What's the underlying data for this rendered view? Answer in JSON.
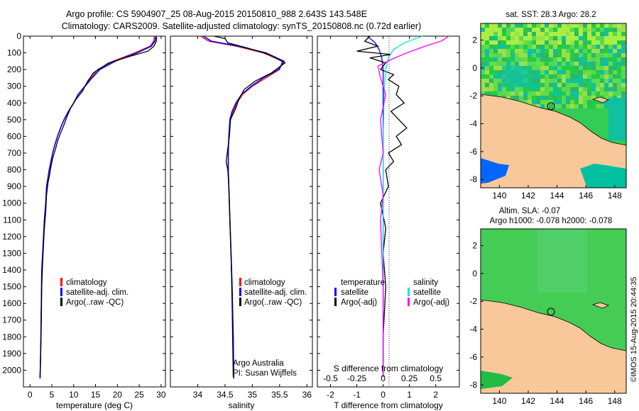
{
  "header": {
    "line1": "Argo profile: CS 5904907_25 08-Aug-2015 20150810_988 2.643S 143.548E",
    "line2": "Climatology: CARS2009. Satellite-adjusted climatology: synTS_20150808.nc (0.72d earlier)"
  },
  "credits": {
    "program": "Argo Australia",
    "pi": "PI: Susan Wijffels",
    "imos": "©IMOS 15-Aug-2015 20:44:35"
  },
  "colors": {
    "climatology": "#ff0000",
    "satellite": "#0000ff",
    "argo": "#000000",
    "sal_satellite": "#00e5e5",
    "sal_argo": "#ff00ff",
    "land": "#f8c89a",
    "ocean_dark": "#0066ff",
    "ocean_mid": "#00c0a0",
    "ocean_green": "#22cc44",
    "ocean_light": "#aaee44"
  },
  "chart_data": [
    {
      "type": "line",
      "xlabel": "temperature (deg C)",
      "ylim": [
        2100,
        0
      ],
      "xlim": [
        -1.5,
        31
      ],
      "xticks": [
        0,
        5,
        10,
        15,
        20,
        25,
        30
      ],
      "yticks": [
        0,
        100,
        200,
        300,
        400,
        500,
        600,
        700,
        800,
        900,
        1000,
        1100,
        1200,
        1300,
        1400,
        1500,
        1600,
        1700,
        1800,
        1900,
        2000
      ],
      "legend": [
        "climatology",
        "satellite-adj. clim.",
        "Argo(..raw -QC)"
      ],
      "series": [
        {
          "name": "climatology",
          "x": [
            28.5,
            28.3,
            27.5,
            24,
            19,
            15.5,
            14,
            12.5,
            11,
            10,
            8.8,
            7.8,
            7,
            6.3,
            5.7,
            5.2,
            4.8,
            4.4,
            4.1,
            3.8,
            3.6,
            3.3,
            3.1,
            2.9,
            2.7,
            2.6,
            2.5,
            2.4,
            2.3
          ],
          "y": [
            0,
            30,
            60,
            100,
            150,
            200,
            250,
            300,
            350,
            400,
            450,
            500,
            550,
            600,
            650,
            700,
            750,
            800,
            850,
            900,
            1000,
            1100,
            1200,
            1300,
            1400,
            1600,
            1800,
            1950,
            2050
          ]
        },
        {
          "name": "satellite-adj. clim.",
          "x": [
            28.8,
            28.6,
            27.8,
            24.5,
            19.5,
            16,
            14.2,
            12.6,
            11,
            10,
            8.8,
            7.8,
            7,
            6.3,
            5.7,
            5.2,
            4.8,
            4.4,
            4.1,
            3.8,
            3.6,
            3.3,
            3.1,
            2.9,
            2.7,
            2.6,
            2.5,
            2.4,
            2.3
          ],
          "y": [
            0,
            30,
            60,
            100,
            150,
            200,
            250,
            300,
            350,
            400,
            450,
            500,
            550,
            600,
            650,
            700,
            750,
            800,
            850,
            900,
            1000,
            1100,
            1200,
            1300,
            1400,
            1600,
            1800,
            1950,
            2050
          ]
        },
        {
          "name": "Argo(..raw -QC)",
          "x": [
            29,
            28.9,
            28.4,
            27,
            23,
            18,
            14.5,
            13.2,
            12,
            10.5,
            9.3,
            8.5,
            7.8,
            7,
            6.3,
            5.8,
            5.2,
            4.8,
            4.5,
            4.1,
            3.8,
            3.6,
            3.3,
            3.1,
            2.9,
            2.7,
            2.6,
            2.5,
            2.4,
            2.3
          ],
          "y": [
            5,
            30,
            60,
            90,
            120,
            160,
            220,
            270,
            330,
            380,
            430,
            480,
            530,
            580,
            630,
            680,
            730,
            780,
            830,
            880,
            950,
            1050,
            1150,
            1250,
            1350,
            1500,
            1700,
            1850,
            1950,
            2040
          ]
        }
      ]
    },
    {
      "type": "line",
      "xlabel": "salinity",
      "ylim": [
        2100,
        0
      ],
      "xlim": [
        33.5,
        36.1
      ],
      "xticks": [
        34,
        34.5,
        35,
        35.5,
        36
      ],
      "legend": [
        "climatology",
        "satellite-adj. clim.",
        "Argo(..raw -QC)"
      ],
      "series": [
        {
          "name": "climatology",
          "x": [
            34.05,
            34.2,
            34.7,
            35.2,
            35.55,
            35.5,
            35.25,
            35.0,
            34.82,
            34.72,
            34.65,
            34.6,
            34.57,
            34.56,
            34.56,
            34.57,
            34.59,
            34.61,
            34.63,
            34.65,
            34.66
          ],
          "y": [
            0,
            30,
            60,
            100,
            150,
            200,
            250,
            300,
            350,
            400,
            450,
            500,
            600,
            700,
            800,
            900,
            1100,
            1300,
            1500,
            1800,
            2050
          ]
        },
        {
          "name": "satellite-adj. clim.",
          "x": [
            34.1,
            34.25,
            34.75,
            35.25,
            35.58,
            35.48,
            35.2,
            34.98,
            34.8,
            34.7,
            34.63,
            34.59,
            34.57,
            34.56,
            34.56,
            34.57,
            34.59,
            34.61,
            34.63,
            34.65,
            34.66
          ],
          "y": [
            0,
            30,
            60,
            100,
            150,
            200,
            250,
            300,
            350,
            400,
            450,
            500,
            600,
            700,
            800,
            900,
            1100,
            1300,
            1500,
            1800,
            2050
          ]
        },
        {
          "name": "Argo(..raw -QC)",
          "x": [
            34.3,
            34.5,
            34.55,
            34.9,
            35.3,
            35.6,
            35.35,
            35.05,
            34.85,
            34.75,
            34.7,
            34.6,
            34.58,
            34.52,
            34.55,
            34.57,
            34.59,
            34.61,
            34.63,
            34.65
          ],
          "y": [
            0,
            15,
            40,
            70,
            110,
            160,
            220,
            270,
            320,
            380,
            430,
            500,
            600,
            750,
            800,
            900,
            1100,
            1300,
            1600,
            2040
          ]
        }
      ]
    },
    {
      "type": "line",
      "xlabel": "T difference from climatology",
      "xlabel2": "S difference from climatology",
      "ylim": [
        2100,
        0
      ],
      "xlim": [
        -2.5,
        2.9
      ],
      "xticks": [
        -2,
        -1,
        0,
        1,
        2
      ],
      "xticks_s": [
        "-0.5",
        "-0.25",
        "0",
        "0.25",
        "0.5"
      ],
      "legend_headers": [
        "temperature",
        "salinity"
      ],
      "legend": [
        "satellite",
        "Argo(-adj)",
        "satellite",
        "Argo(-adj)"
      ],
      "series": [
        {
          "name": "satellite",
          "x": [
            -0.6,
            -0.3,
            -0.15,
            -0.05,
            0,
            0,
            0,
            0,
            0,
            0
          ],
          "y": [
            0,
            40,
            80,
            130,
            200,
            300,
            600,
            1000,
            1500,
            2040
          ]
        },
        {
          "name": "Argo(-adj)",
          "x": [
            -0.5,
            -0.7,
            -0.2,
            -1.0,
            0.3,
            -0.5,
            0.1,
            -0.1,
            0.4,
            0.2,
            0.6,
            0.5,
            0.8,
            0.3,
            0.6,
            0.9,
            0.5,
            0.7,
            0.2,
            0.4,
            0.1,
            0.2,
            -0.1,
            0.1,
            0,
            0.1,
            0,
            0
          ],
          "y": [
            0,
            30,
            60,
            90,
            110,
            130,
            160,
            200,
            230,
            260,
            300,
            350,
            400,
            450,
            500,
            550,
            600,
            650,
            700,
            750,
            800,
            900,
            1000,
            1150,
            1300,
            1500,
            1800,
            2040
          ]
        },
        {
          "name": "satellite (salinity)",
          "x": [
            1.5,
            0.8,
            0.4,
            0.2,
            0.1,
            0.05,
            0,
            0,
            0,
            0
          ],
          "y": [
            0,
            40,
            80,
            130,
            200,
            300,
            600,
            1000,
            1500,
            2040
          ]
        },
        {
          "name": "Argo(-adj) (salinity)",
          "x": [
            2.5,
            2.2,
            1.6,
            0.9,
            0.3,
            -0.2,
            -0.1,
            0.1,
            -0.1,
            0,
            -0.15,
            0,
            -0.1,
            0,
            0
          ],
          "y": [
            0,
            30,
            60,
            100,
            140,
            180,
            250,
            350,
            500,
            700,
            800,
            950,
            1100,
            1500,
            2040
          ]
        }
      ]
    }
  ],
  "maps": [
    {
      "title": "sat. SST: 28.3 Argo: 28.2",
      "xticks": [
        140,
        142,
        144,
        146,
        148
      ],
      "yticks": [
        2,
        0,
        -2,
        -4,
        -6,
        -8
      ],
      "xlim": [
        138.7,
        148.8
      ],
      "ylim": [
        -8.6,
        3.2
      ],
      "argo_lon": 143.548,
      "argo_lat": -2.643
    },
    {
      "title1": "Altim. SLA: -0.07",
      "title2": "Argo h1000: -0.078 h2000: -0.078",
      "xticks": [
        140,
        142,
        144,
        146,
        148
      ],
      "yticks": [
        2,
        0,
        -2,
        -4,
        -6,
        -8
      ],
      "xlim": [
        138.7,
        148.8
      ],
      "ylim": [
        -8.6,
        3.2
      ],
      "argo_lon": 143.548,
      "argo_lat": -2.643
    }
  ]
}
